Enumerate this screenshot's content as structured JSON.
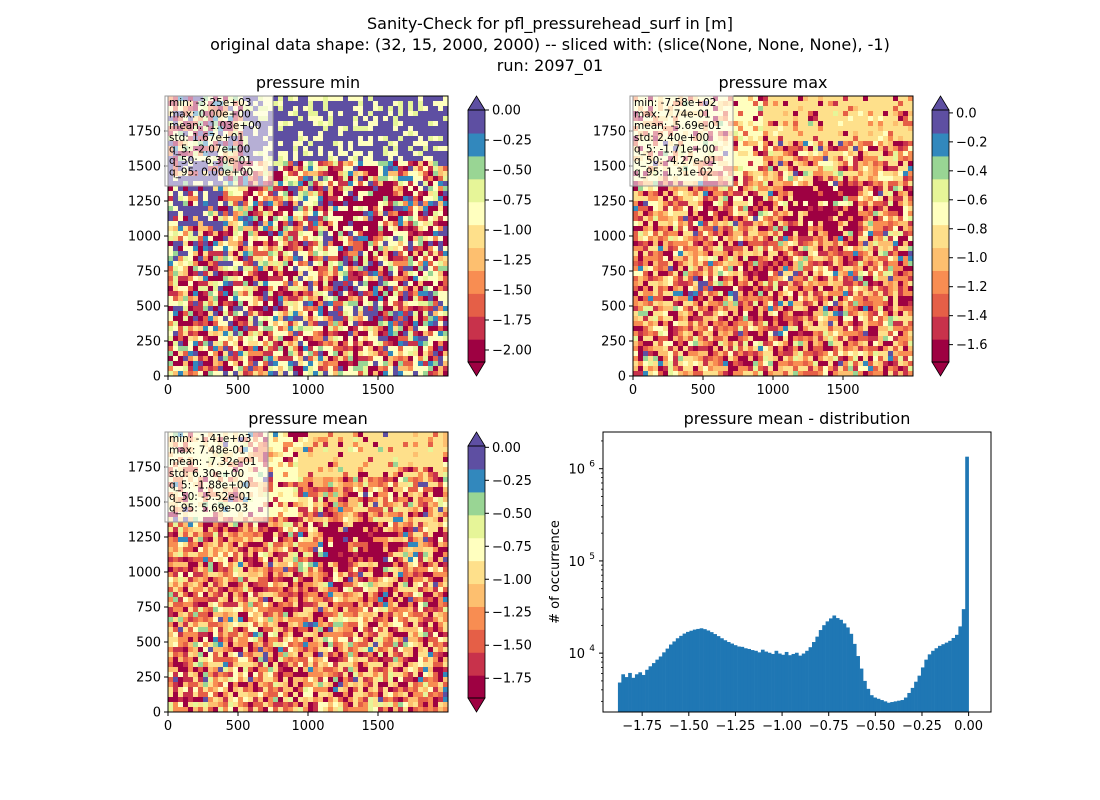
{
  "figure": {
    "suptitle_lines": [
      "Sanity-Check for pfl_pressurehead_surf in [m]",
      "original data shape: (32, 15, 2000, 2000) -- sliced with: (slice(None, None, None), -1)",
      "run: 2097_01"
    ]
  },
  "colors": {
    "histogram_fill": "#1f77b4",
    "colormap": "Spectral",
    "map_palette": [
      "#9e0142",
      "#c8324b",
      "#e55f47",
      "#f88d52",
      "#fdbf6f",
      "#fee08b",
      "#ffffbf",
      "#e6f598",
      "#99d594",
      "#3288bd",
      "#5e4fa2"
    ]
  },
  "chart_data": [
    {
      "type": "heatmap",
      "title": "pressure min",
      "x_ticks": [
        "0",
        "500",
        "1000",
        "1500"
      ],
      "y_ticks": [
        "0",
        "250",
        "500",
        "750",
        "1000",
        "1250",
        "1500",
        "1750"
      ],
      "xlim": [
        0,
        2000
      ],
      "ylim": [
        0,
        2000
      ],
      "colorbar": {
        "min": -2.1,
        "max": 0.0,
        "extend": "both",
        "ticks": [
          "0.00",
          "−0.25",
          "−0.50",
          "−0.75",
          "−1.00",
          "−1.25",
          "−1.50",
          "−1.75",
          "−2.00"
        ],
        "tick_values": [
          0,
          -0.25,
          -0.5,
          -0.75,
          -1.0,
          -1.25,
          -1.5,
          -1.75,
          -2.0
        ]
      },
      "stats": [
        "min: -3.25e+03",
        "max: 0.00e+00",
        "mean: -1.03e+00",
        "std: 1.67e+01",
        "q_5: -2.07e+00",
        "q_50: -6.30e-01",
        "q_95: 0.00e+00"
      ]
    },
    {
      "type": "heatmap",
      "title": "pressure max",
      "x_ticks": [
        "0",
        "500",
        "1000",
        "1500"
      ],
      "y_ticks": [
        "0",
        "250",
        "500",
        "750",
        "1000",
        "1250",
        "1500",
        "1750"
      ],
      "xlim": [
        0,
        2000
      ],
      "ylim": [
        0,
        2000
      ],
      "colorbar": {
        "min": -1.72,
        "max": 0.02,
        "extend": "both",
        "ticks": [
          "0.0",
          "−0.2",
          "−0.4",
          "−0.6",
          "−0.8",
          "−1.0",
          "−1.2",
          "−1.4",
          "−1.6"
        ],
        "tick_values": [
          0,
          -0.2,
          -0.4,
          -0.6,
          -0.8,
          -1.0,
          -1.2,
          -1.4,
          -1.6
        ]
      },
      "stats": [
        "min: -7.58e+02",
        "max: 7.74e-01",
        "mean: -5.69e-01",
        "std: 2.40e+00",
        "q_5: -1.71e+00",
        "q_50: -4.27e-01",
        "q_95: 1.31e-02"
      ]
    },
    {
      "type": "heatmap",
      "title": "pressure mean",
      "x_ticks": [
        "0",
        "500",
        "1000",
        "1500"
      ],
      "y_ticks": [
        "0",
        "250",
        "500",
        "750",
        "1000",
        "1250",
        "1500",
        "1750"
      ],
      "xlim": [
        0,
        2000
      ],
      "ylim": [
        0,
        2000
      ],
      "colorbar": {
        "min": -1.9,
        "max": 0.01,
        "extend": "both",
        "ticks": [
          "0.00",
          "−0.25",
          "−0.50",
          "−0.75",
          "−1.00",
          "−1.25",
          "−1.50",
          "−1.75"
        ],
        "tick_values": [
          0,
          -0.25,
          -0.5,
          -0.75,
          -1.0,
          -1.25,
          -1.5,
          -1.75
        ]
      },
      "stats": [
        "min: -1.41e+03",
        "max: 7.48e-01",
        "mean: -7.32e-01",
        "std: 6.30e+00",
        "q_5: -1.88e+00",
        "q_50: -5.52e-01",
        "q_95: 5.69e-03"
      ]
    },
    {
      "type": "bar",
      "title": "pressure mean - distribution",
      "ylabel": "# of occurrence",
      "yscale": "log",
      "xlim": [
        -1.96,
        0.12
      ],
      "x_ticks": [
        "−1.75",
        "−1.50",
        "−1.25",
        "−1.00",
        "−0.75",
        "−0.50",
        "−0.25",
        "0.00"
      ],
      "x_tick_values": [
        -1.75,
        -1.5,
        -1.25,
        -1.0,
        -0.75,
        -0.5,
        -0.25,
        0.0
      ],
      "y_ticks": [
        "10^4",
        "10^5",
        "10^6"
      ],
      "y_tick_values": [
        10000,
        100000,
        1000000
      ],
      "ylim": [
        2300,
        2500000
      ],
      "bin_start": -1.88,
      "bin_end": 0.0,
      "values": [
        4800,
        5900,
        5500,
        6100,
        5400,
        5900,
        6200,
        5800,
        6600,
        7200,
        7800,
        8500,
        9200,
        10200,
        11200,
        12400,
        13400,
        14500,
        15400,
        16300,
        17000,
        17500,
        18000,
        18300,
        18600,
        18200,
        17600,
        16900,
        16100,
        15300,
        14500,
        13800,
        13200,
        12700,
        12200,
        11800,
        11700,
        11300,
        11100,
        10800,
        10600,
        10200,
        10900,
        10400,
        10100,
        9800,
        10600,
        9900,
        9600,
        10300,
        9500,
        9800,
        10100,
        9400,
        9900,
        10600,
        11600,
        13200,
        15100,
        17800,
        20100,
        22100,
        23800,
        25600,
        24000,
        23000,
        21000,
        19000,
        16200,
        12600,
        9300,
        6800,
        5000,
        4100,
        3500,
        3300,
        3200,
        3100,
        3000,
        2900,
        2950,
        3000,
        3050,
        3100,
        3300,
        3700,
        4200,
        4900,
        5700,
        7000,
        8500,
        9700,
        10600,
        11300,
        12000,
        12500,
        13000,
        13600,
        14600,
        15800,
        19500,
        30000,
        1350000
      ]
    }
  ]
}
